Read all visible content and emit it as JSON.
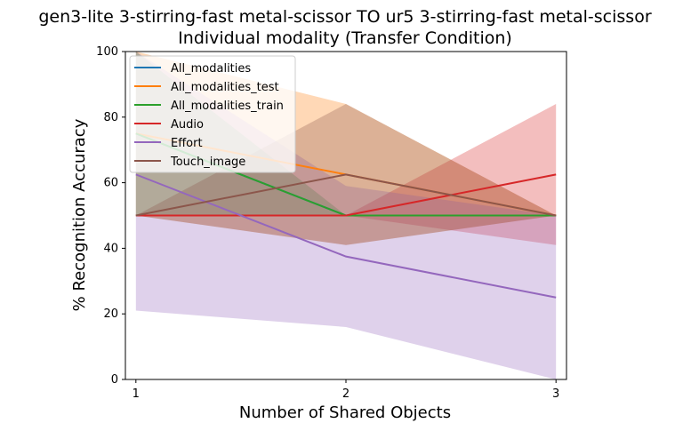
{
  "chart_data": {
    "type": "line",
    "title": "gen3-lite 3-stirring-fast metal-scissor TO ur5 3-stirring-fast metal-scissor",
    "subtitle": "Individual modality (Transfer Condition)",
    "xlabel": "Number of Shared Objects",
    "ylabel": "% Recognition Accuracy",
    "x": [
      1,
      2,
      3
    ],
    "xticks": [
      "1",
      "2",
      "3"
    ],
    "yticks": [
      "0",
      "20",
      "40",
      "60",
      "80",
      "100"
    ],
    "xlim": [
      0.95,
      3.05
    ],
    "ylim": [
      0,
      100
    ],
    "legend_position": "top-left",
    "series": [
      {
        "name": "All_modalities",
        "color": "#1f77b4",
        "values": [
          75,
          50,
          50
        ],
        "lower": [
          75,
          50,
          50
        ],
        "upper": [
          75,
          50,
          50
        ]
      },
      {
        "name": "All_modalities_test",
        "color": "#ff7f0e",
        "values": [
          75,
          62.5,
          50
        ],
        "lower": [
          50,
          41,
          50
        ],
        "upper": [
          100,
          84,
          50
        ]
      },
      {
        "name": "All_modalities_train",
        "color": "#2ca02c",
        "values": [
          75,
          50,
          50
        ],
        "lower": [
          50,
          50,
          50
        ],
        "upper": [
          100,
          50,
          50
        ]
      },
      {
        "name": "Audio",
        "color": "#d62728",
        "values": [
          50,
          50,
          62.5
        ],
        "lower": [
          50,
          50,
          41
        ],
        "upper": [
          50,
          50,
          84
        ]
      },
      {
        "name": "Effort",
        "color": "#9467bd",
        "values": [
          62.5,
          37.5,
          25
        ],
        "lower": [
          21,
          16,
          0
        ],
        "upper": [
          100,
          59,
          50
        ]
      },
      {
        "name": "Touch_image",
        "color": "#8c564b",
        "values": [
          50,
          62.5,
          50
        ],
        "lower": [
          50,
          41,
          50
        ],
        "upper": [
          50,
          84,
          50
        ]
      }
    ]
  }
}
